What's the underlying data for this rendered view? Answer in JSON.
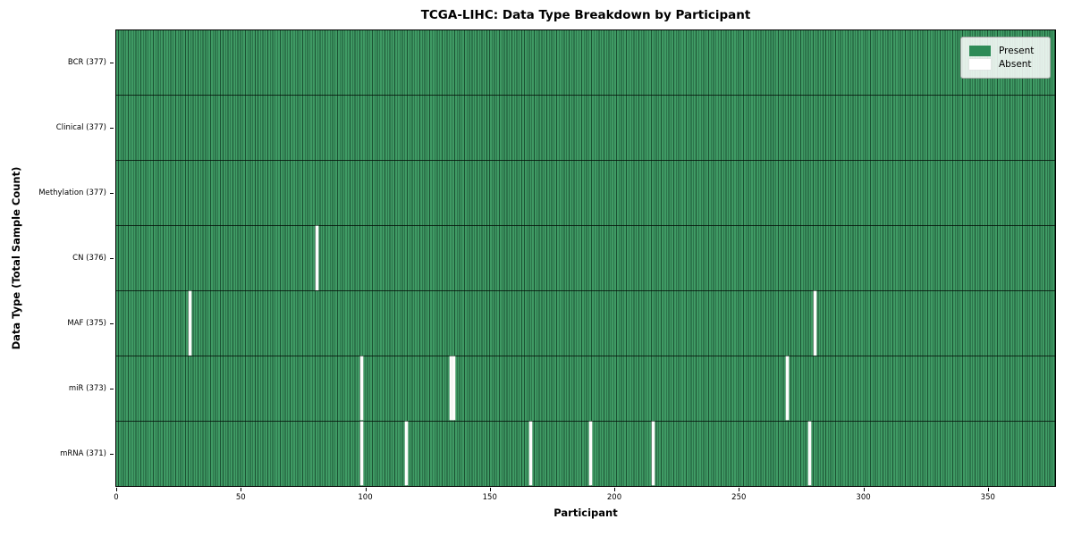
{
  "chart_data": {
    "type": "heatmap",
    "title": "TCGA-LIHC: Data Type Breakdown by Participant",
    "xlabel": "Participant",
    "ylabel": "Data Type (Total Sample Count)",
    "x_ticks": [
      0,
      50,
      100,
      150,
      200,
      250,
      300,
      350
    ],
    "xlim": [
      0,
      377
    ],
    "n_participants": 377,
    "grid": false,
    "legend_position": "upper right",
    "cell_colors": {
      "present": "#2e8b57",
      "absent": "#ffffff"
    },
    "legend": [
      {
        "label": "Present",
        "color": "#2e8b57"
      },
      {
        "label": "Absent",
        "color": "#ffffff"
      }
    ],
    "rows": [
      {
        "data_type": "BCR",
        "label": "BCR (377)",
        "present_count": 377,
        "absent_count": 0,
        "absent_participants": []
      },
      {
        "data_type": "Clinical",
        "label": "Clinical (377)",
        "present_count": 377,
        "absent_count": 0,
        "absent_participants": []
      },
      {
        "data_type": "Methylation",
        "label": "Methylation (377)",
        "present_count": 377,
        "absent_count": 0,
        "absent_participants": []
      },
      {
        "data_type": "CN",
        "label": "CN (376)",
        "present_count": 376,
        "absent_count": 1,
        "absent_participants": [
          80
        ]
      },
      {
        "data_type": "MAF",
        "label": "MAF (375)",
        "present_count": 375,
        "absent_count": 2,
        "absent_participants": [
          29,
          280
        ]
      },
      {
        "data_type": "miR",
        "label": "miR (373)",
        "present_count": 373,
        "absent_count": 4,
        "absent_participants": [
          98,
          134,
          135,
          269
        ]
      },
      {
        "data_type": "mRNA",
        "label": "mRNA (371)",
        "present_count": 371,
        "absent_count": 6,
        "absent_participants": [
          98,
          116,
          166,
          190,
          215,
          278
        ]
      }
    ]
  }
}
